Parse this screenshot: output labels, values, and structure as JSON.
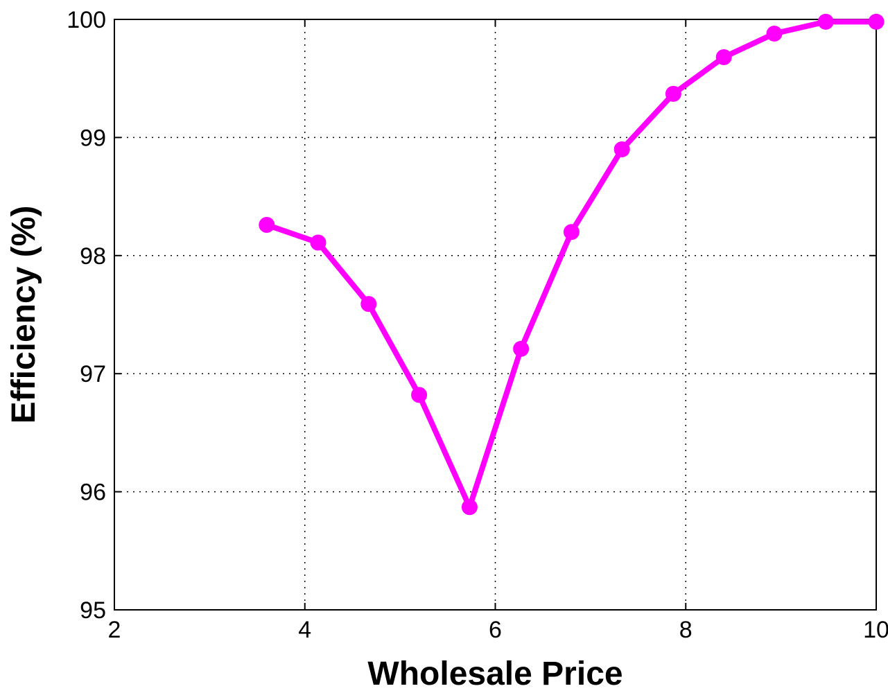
{
  "chart_data": {
    "type": "line",
    "title": "",
    "xlabel": "Wholesale Price",
    "ylabel": "Efficiency (%)",
    "xlim": [
      2,
      10
    ],
    "ylim": [
      95,
      100
    ],
    "xticks": [
      "2",
      "4",
      "6",
      "8",
      "10"
    ],
    "yticks": [
      "95",
      "96",
      "97",
      "98",
      "99",
      "100"
    ],
    "grid": true,
    "grid_style": "dotted",
    "series": [
      {
        "color": "#ff00ff",
        "marker": "circle",
        "x": [
          3.6,
          4.14,
          4.67,
          5.2,
          5.73,
          6.27,
          6.8,
          7.33,
          7.87,
          8.4,
          8.93,
          9.47,
          10.0
        ],
        "y": [
          98.26,
          98.11,
          97.59,
          96.82,
          95.87,
          97.21,
          98.2,
          98.9,
          99.37,
          99.68,
          99.88,
          99.98,
          99.98
        ]
      }
    ]
  }
}
